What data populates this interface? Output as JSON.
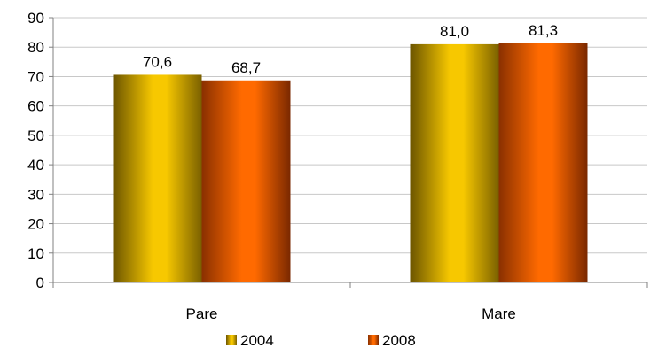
{
  "chart_data": {
    "type": "bar",
    "categories": [
      "Pare",
      "Mare"
    ],
    "series": [
      {
        "name": "2004",
        "values": [
          70.6,
          81.0
        ],
        "labels": [
          "70,6",
          "81,0"
        ],
        "color": "#f5c400"
      },
      {
        "name": "2008",
        "values": [
          68.7,
          81.3
        ],
        "labels": [
          "68,7",
          "81,3"
        ],
        "color": "#ff6600"
      }
    ],
    "ylim": [
      0,
      90
    ],
    "yticks": [
      0,
      10,
      20,
      30,
      40,
      50,
      60,
      70,
      80,
      90
    ],
    "grid": true,
    "legend_position": "bottom"
  }
}
